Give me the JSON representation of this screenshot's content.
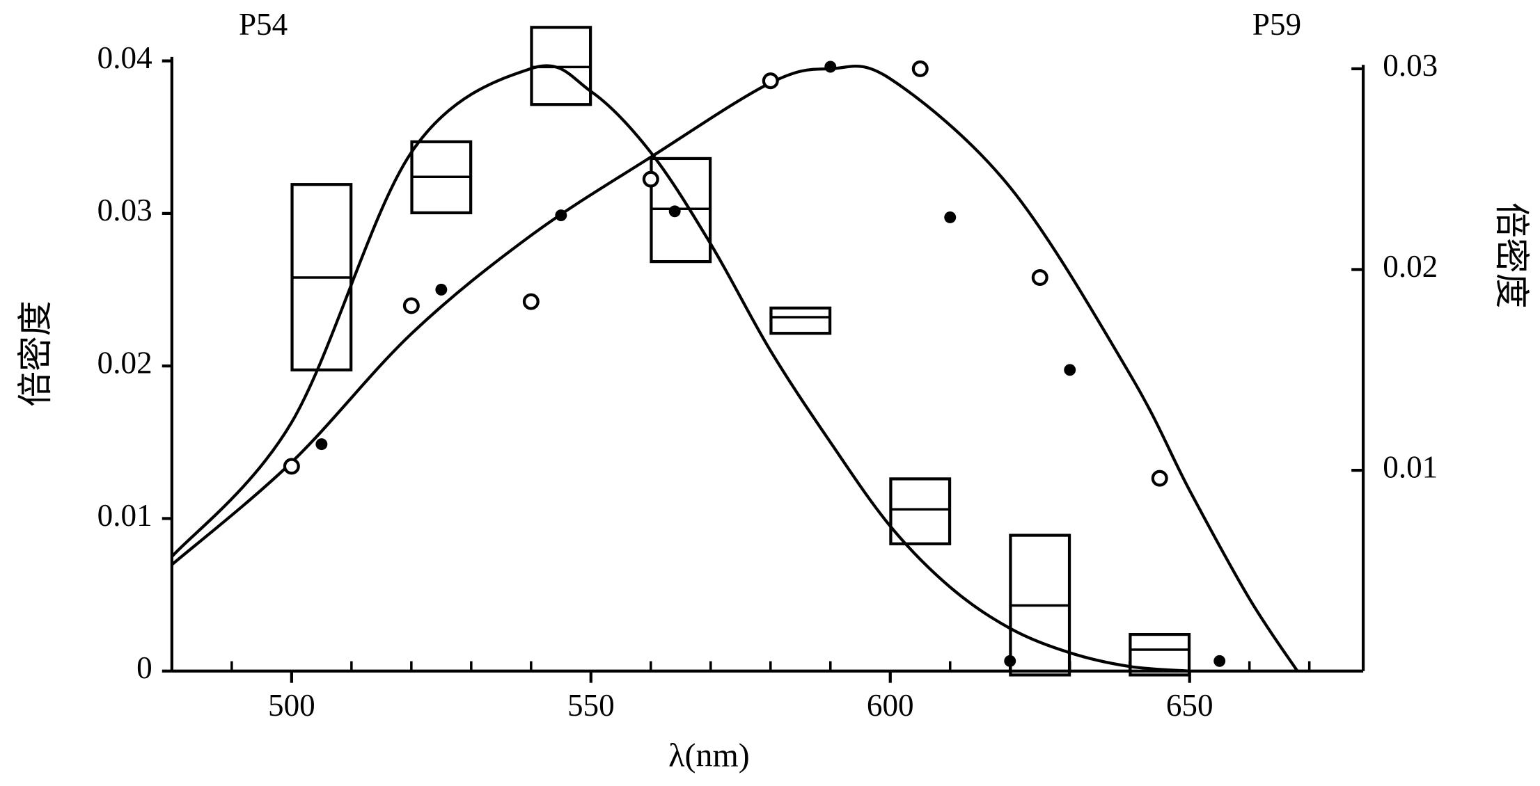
{
  "chart_data": {
    "type": "line",
    "left_label": "P54",
    "right_label": "P59",
    "ylabel": "倍密度",
    "y2label": "倍密度",
    "xlabel": "λ(nm)",
    "xlim": [
      480,
      679
    ],
    "xticks": [
      500,
      550,
      600,
      650
    ],
    "xminorticks": [
      490,
      510,
      520,
      530,
      540,
      560,
      570,
      580,
      590,
      610,
      620,
      630,
      640,
      660,
      670
    ],
    "ylim": [
      0,
      0.04
    ],
    "yticks": [
      0,
      0.01,
      0.02,
      0.03,
      0.04
    ],
    "y2lim": [
      0,
      0.03
    ],
    "y2ticks": [
      0.01,
      0.02,
      0.03
    ],
    "color": "#000000",
    "series": [
      {
        "kind": "line",
        "axis": "y",
        "x": [
          480,
          500,
          520,
          540,
          550,
          560,
          570,
          580,
          590,
          600,
          610,
          620,
          630,
          640,
          650
        ],
        "values": [
          0.0075,
          0.0163,
          0.034,
          0.0395,
          0.038,
          0.034,
          0.028,
          0.021,
          0.015,
          0.0095,
          0.0055,
          0.0028,
          0.0012,
          0.0003,
          0
        ]
      },
      {
        "kind": "line",
        "axis": "y2",
        "x": [
          480,
          500,
          520,
          540,
          560,
          580,
          590,
          600,
          620,
          640,
          650,
          660,
          668
        ],
        "values": [
          0.0053,
          0.0104,
          0.0168,
          0.0217,
          0.0256,
          0.0293,
          0.03,
          0.0295,
          0.0241,
          0.0148,
          0.009,
          0.0036,
          0
        ]
      },
      {
        "kind": "box",
        "axis": "y",
        "x": [
          505,
          525,
          545,
          565,
          585,
          605,
          625,
          645
        ],
        "high": [
          0.0319,
          0.0347,
          0.0422,
          0.0336,
          0.0238,
          0.0126,
          0.0089,
          0.0024
        ],
        "mid": [
          0.0258,
          0.0324,
          0.0396,
          0.0303,
          0.0232,
          0.0106,
          0.0043,
          0.0014
        ],
        "low": [
          0.02,
          0.0303,
          0.0374,
          0.0271,
          0.0224,
          0.0086,
          0,
          0
        ]
      },
      {
        "kind": "open-circle",
        "axis": "y2",
        "x": [
          500,
          520,
          540,
          560,
          580,
          605,
          625,
          645
        ],
        "values": [
          0.0102,
          0.0182,
          0.0184,
          0.0245,
          0.0294,
          0.03,
          0.0196,
          0.0096
        ]
      },
      {
        "kind": "filled-circle",
        "axis": "y2",
        "x": [
          505,
          525,
          545,
          564,
          590,
          610,
          620,
          630,
          655
        ],
        "values": [
          0.0113,
          0.019,
          0.0227,
          0.0229,
          0.0301,
          0.0226,
          0.0005,
          0.015,
          0.0005
        ]
      }
    ]
  }
}
